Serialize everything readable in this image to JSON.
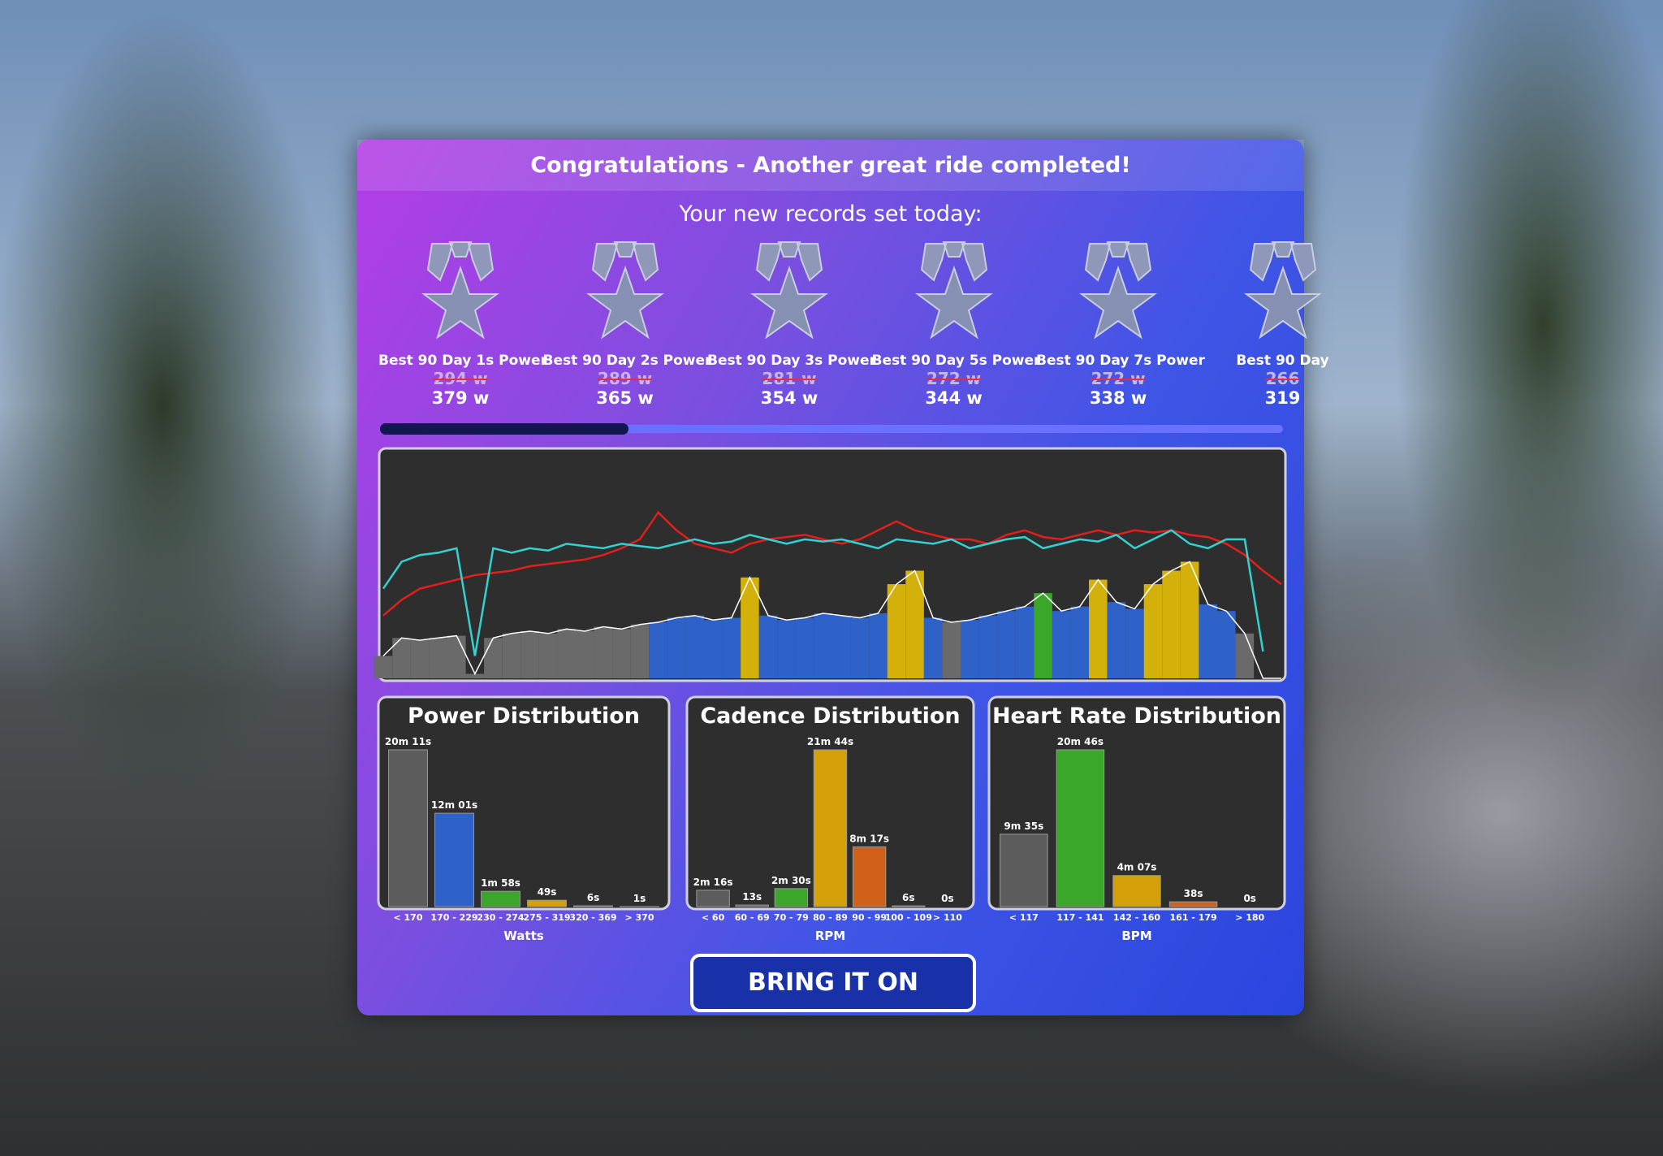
{
  "header": {
    "title": "Congratulations - Another great ride completed!"
  },
  "records": {
    "heading": "Your new records set today:",
    "items": [
      {
        "label": "Best 90 Day 1s Power",
        "previous": "294 w",
        "current": "379 w"
      },
      {
        "label": "Best 90 Day 2s Power",
        "previous": "289 w",
        "current": "365 w"
      },
      {
        "label": "Best 90 Day 3s Power",
        "previous": "281 w",
        "current": "354 w"
      },
      {
        "label": "Best 90 Day 5s Power",
        "previous": "272 w",
        "current": "344 w"
      },
      {
        "label": "Best 90 Day 7s Power",
        "previous": "272 w",
        "current": "338 w"
      },
      {
        "label": "Best 90 Day",
        "previous": "266",
        "current": "319"
      }
    ]
  },
  "ride_graph": {
    "series": [
      {
        "color": "#ffffff",
        "zone_colors": [
          "#6a6a6a",
          "#2f62c8",
          "#3aa62a",
          "#d4b00a"
        ],
        "values": [
          10,
          18,
          17,
          18,
          19,
          2,
          18,
          20,
          21,
          20,
          22,
          21,
          23,
          22,
          24,
          25,
          27,
          28,
          26,
          27,
          45,
          28,
          26,
          27,
          29,
          28,
          27,
          29,
          42,
          48,
          27,
          25,
          26,
          28,
          30,
          32,
          38,
          30,
          32,
          44,
          34,
          31,
          42,
          48,
          52,
          33,
          30,
          20,
          0,
          0
        ],
        "zones": [
          0,
          0,
          0,
          0,
          0,
          0,
          0,
          0,
          0,
          0,
          0,
          0,
          0,
          0,
          0,
          1,
          1,
          1,
          1,
          1,
          3,
          1,
          1,
          1,
          1,
          1,
          1,
          1,
          3,
          3,
          1,
          0,
          1,
          1,
          1,
          1,
          2,
          1,
          1,
          3,
          1,
          1,
          3,
          3,
          3,
          1,
          1,
          0,
          0,
          0
        ]
      },
      {
        "color": "#e0201c",
        "values": [
          28,
          35,
          40,
          42,
          44,
          46,
          47,
          48,
          50,
          51,
          52,
          53,
          55,
          58,
          62,
          74,
          66,
          60,
          58,
          56,
          60,
          62,
          63,
          64,
          62,
          60,
          62,
          66,
          70,
          66,
          64,
          62,
          62,
          60,
          64,
          66,
          63,
          62,
          64,
          66,
          64,
          66,
          65,
          66,
          64,
          63,
          60,
          55,
          48,
          42
        ]
      },
      {
        "color": "#35d0d0",
        "values": [
          40,
          52,
          55,
          56,
          58,
          10,
          58,
          56,
          58,
          57,
          60,
          59,
          58,
          60,
          59,
          58,
          60,
          62,
          60,
          61,
          64,
          62,
          60,
          62,
          61,
          62,
          60,
          58,
          62,
          61,
          60,
          62,
          58,
          60,
          62,
          63,
          58,
          60,
          62,
          61,
          64,
          58,
          62,
          66,
          60,
          58,
          62,
          62,
          12,
          null
        ]
      }
    ]
  },
  "distributions": [
    {
      "title": "Power Distribution",
      "axis_label": "Watts",
      "categories": [
        "< 170",
        "170 - 229",
        "230 - 274",
        "275 - 319",
        "320 - 369",
        "> 370"
      ],
      "values": [
        1211,
        721,
        118,
        49,
        6,
        1
      ],
      "value_labels": [
        "20m 11s",
        "12m 01s",
        "1m 58s",
        "49s",
        "6s",
        "1s"
      ],
      "colors": [
        "#5c5c5c",
        "#2f62c8",
        "#3aa62a",
        "#d4a10a",
        "#d0601a",
        "#d03030"
      ]
    },
    {
      "title": "Cadence Distribution",
      "axis_label": "RPM",
      "categories": [
        "< 60",
        "60 - 69",
        "70 - 79",
        "80 - 89",
        "90 - 99",
        "100 - 109",
        "> 110"
      ],
      "values": [
        136,
        13,
        150,
        1304,
        497,
        6,
        0
      ],
      "value_labels": [
        "2m 16s",
        "13s",
        "2m 30s",
        "21m 44s",
        "8m 17s",
        "6s",
        "0s"
      ],
      "colors": [
        "#5c5c5c",
        "#5c5c5c",
        "#3aa62a",
        "#d4a10a",
        "#d0601a",
        "#d03030",
        "#d03030"
      ]
    },
    {
      "title": "Heart Rate Distribution",
      "axis_label": "BPM",
      "categories": [
        "< 117",
        "117 - 141",
        "142 - 160",
        "161 - 179",
        "> 180"
      ],
      "values": [
        575,
        1246,
        247,
        38,
        0
      ],
      "value_labels": [
        "9m 35s",
        "20m 46s",
        "4m 07s",
        "38s",
        "0s"
      ],
      "colors": [
        "#5c5c5c",
        "#3aa62a",
        "#d4a10a",
        "#d0601a",
        "#d03030"
      ]
    }
  ],
  "button": {
    "label": "BRING IT ON"
  }
}
